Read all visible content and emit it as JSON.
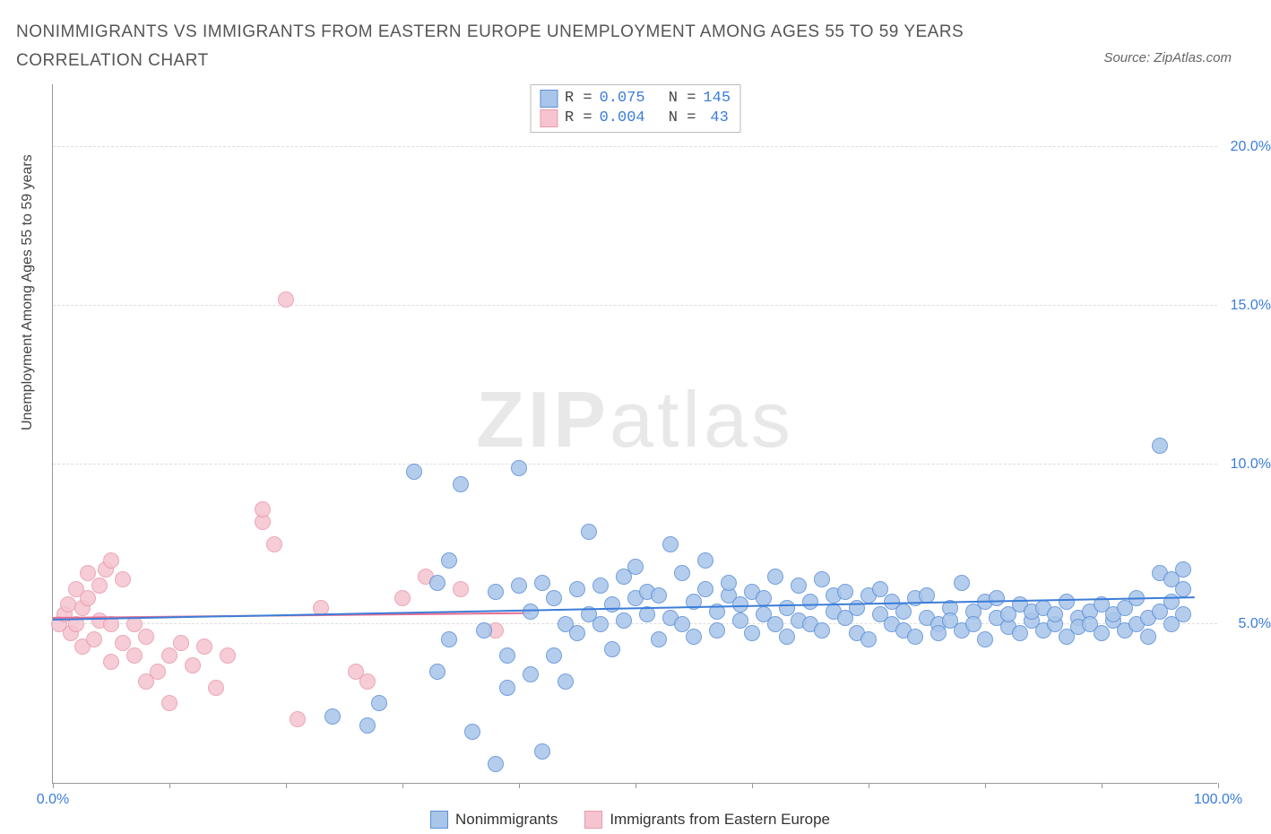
{
  "title": "NONIMMIGRANTS VS IMMIGRANTS FROM EASTERN EUROPE UNEMPLOYMENT AMONG AGES 55 TO 59 YEARS CORRELATION CHART",
  "source": "Source: ZipAtlas.com",
  "watermark_bold": "ZIP",
  "watermark_light": "atlas",
  "y_axis_label": "Unemployment Among Ages 55 to 59 years",
  "chart": {
    "type": "scatter",
    "background_color": "#ffffff",
    "grid_color": "#dddddd",
    "axis_color": "#999999",
    "xlim": [
      0,
      100
    ],
    "ylim": [
      0,
      22
    ],
    "x_tick_positions": [
      0,
      10,
      20,
      30,
      40,
      50,
      60,
      70,
      80,
      90,
      100
    ],
    "x_tick_labels_shown": {
      "0": "0.0%",
      "100": "100.0%"
    },
    "y_grid_positions": [
      5,
      10,
      15,
      20
    ],
    "y_tick_labels": {
      "5": "5.0%",
      "10": "10.0%",
      "15": "15.0%",
      "20": "20.0%"
    },
    "label_color": "#3b7dd8",
    "label_fontsize": 16,
    "marker_radius": 9,
    "marker_stroke_width": 1.2,
    "marker_fill_opacity": 0.32
  },
  "series": {
    "blue": {
      "label": "Nonimmigrants",
      "stroke": "#5b8fd6",
      "fill": "#a9c5ea",
      "R": "0.075",
      "N": "145",
      "trend": {
        "x1": 0,
        "y1": 5.1,
        "x2": 98,
        "y2": 5.8,
        "color": "#3b7dd8",
        "width": 2
      },
      "points": [
        [
          24,
          2.1
        ],
        [
          27,
          1.8
        ],
        [
          28,
          2.5
        ],
        [
          31,
          9.8
        ],
        [
          33,
          6.3
        ],
        [
          33,
          3.5
        ],
        [
          34,
          7.0
        ],
        [
          34,
          4.5
        ],
        [
          35,
          9.4
        ],
        [
          36,
          1.6
        ],
        [
          37,
          4.8
        ],
        [
          38,
          6.0
        ],
        [
          38,
          0.6
        ],
        [
          39,
          3.0
        ],
        [
          39,
          4.0
        ],
        [
          40,
          6.2
        ],
        [
          40,
          9.9
        ],
        [
          41,
          5.4
        ],
        [
          41,
          3.4
        ],
        [
          42,
          1.0
        ],
        [
          42,
          6.3
        ],
        [
          43,
          4.0
        ],
        [
          43,
          5.8
        ],
        [
          44,
          5.0
        ],
        [
          44,
          3.2
        ],
        [
          45,
          6.1
        ],
        [
          45,
          4.7
        ],
        [
          46,
          7.9
        ],
        [
          46,
          5.3
        ],
        [
          47,
          6.2
        ],
        [
          47,
          5.0
        ],
        [
          48,
          5.6
        ],
        [
          48,
          4.2
        ],
        [
          49,
          6.5
        ],
        [
          49,
          5.1
        ],
        [
          50,
          5.8
        ],
        [
          50,
          6.8
        ],
        [
          51,
          5.3
        ],
        [
          51,
          6.0
        ],
        [
          52,
          4.5
        ],
        [
          52,
          5.9
        ],
        [
          53,
          7.5
        ],
        [
          53,
          5.2
        ],
        [
          54,
          6.6
        ],
        [
          54,
          5.0
        ],
        [
          55,
          5.7
        ],
        [
          55,
          4.6
        ],
        [
          56,
          6.1
        ],
        [
          56,
          7.0
        ],
        [
          57,
          5.4
        ],
        [
          57,
          4.8
        ],
        [
          58,
          5.9
        ],
        [
          58,
          6.3
        ],
        [
          59,
          5.1
        ],
        [
          59,
          5.6
        ],
        [
          60,
          4.7
        ],
        [
          60,
          6.0
        ],
        [
          61,
          5.3
        ],
        [
          61,
          5.8
        ],
        [
          62,
          6.5
        ],
        [
          62,
          5.0
        ],
        [
          63,
          5.5
        ],
        [
          63,
          4.6
        ],
        [
          64,
          6.2
        ],
        [
          64,
          5.1
        ],
        [
          65,
          5.7
        ],
        [
          65,
          5.0
        ],
        [
          66,
          6.4
        ],
        [
          66,
          4.8
        ],
        [
          67,
          5.4
        ],
        [
          67,
          5.9
        ],
        [
          68,
          5.2
        ],
        [
          68,
          6.0
        ],
        [
          69,
          4.7
        ],
        [
          69,
          5.5
        ],
        [
          70,
          5.9
        ],
        [
          70,
          4.5
        ],
        [
          71,
          5.3
        ],
        [
          71,
          6.1
        ],
        [
          72,
          5.0
        ],
        [
          72,
          5.7
        ],
        [
          73,
          4.8
        ],
        [
          73,
          5.4
        ],
        [
          74,
          5.8
        ],
        [
          74,
          4.6
        ],
        [
          75,
          5.2
        ],
        [
          75,
          5.9
        ],
        [
          76,
          5.0
        ],
        [
          76,
          4.7
        ],
        [
          77,
          5.5
        ],
        [
          77,
          5.1
        ],
        [
          78,
          6.3
        ],
        [
          78,
          4.8
        ],
        [
          79,
          5.4
        ],
        [
          79,
          5.0
        ],
        [
          80,
          5.7
        ],
        [
          80,
          4.5
        ],
        [
          81,
          5.2
        ],
        [
          81,
          5.8
        ],
        [
          82,
          4.9
        ],
        [
          82,
          5.3
        ],
        [
          83,
          5.6
        ],
        [
          83,
          4.7
        ],
        [
          84,
          5.1
        ],
        [
          84,
          5.4
        ],
        [
          85,
          4.8
        ],
        [
          85,
          5.5
        ],
        [
          86,
          5.0
        ],
        [
          86,
          5.3
        ],
        [
          87,
          4.6
        ],
        [
          87,
          5.7
        ],
        [
          88,
          5.2
        ],
        [
          88,
          4.9
        ],
        [
          89,
          5.4
        ],
        [
          89,
          5.0
        ],
        [
          90,
          5.6
        ],
        [
          90,
          4.7
        ],
        [
          91,
          5.1
        ],
        [
          91,
          5.3
        ],
        [
          92,
          4.8
        ],
        [
          92,
          5.5
        ],
        [
          93,
          5.0
        ],
        [
          93,
          5.8
        ],
        [
          94,
          4.6
        ],
        [
          94,
          5.2
        ],
        [
          95,
          5.4
        ],
        [
          95,
          6.6
        ],
        [
          96,
          5.0
        ],
        [
          96,
          6.4
        ],
        [
          96,
          5.7
        ],
        [
          97,
          6.1
        ],
        [
          97,
          5.3
        ],
        [
          97,
          6.7
        ],
        [
          95,
          10.6
        ]
      ]
    },
    "pink": {
      "label": "Immigrants from Eastern Europe",
      "stroke": "#e89aad",
      "fill": "#f5c4d0",
      "R": "0.004",
      "N": "43",
      "trend": {
        "x1": 0,
        "y1": 5.15,
        "x2": 41,
        "y2": 5.3,
        "color": "#e86f92",
        "width": 2
      },
      "points": [
        [
          0.5,
          5.0
        ],
        [
          1,
          5.3
        ],
        [
          1.3,
          5.6
        ],
        [
          1.5,
          4.7
        ],
        [
          2,
          6.1
        ],
        [
          2,
          5.0
        ],
        [
          2.5,
          5.5
        ],
        [
          2.5,
          4.3
        ],
        [
          3,
          6.6
        ],
        [
          3,
          5.8
        ],
        [
          3.5,
          4.5
        ],
        [
          4,
          6.2
        ],
        [
          4,
          5.1
        ],
        [
          4.5,
          6.7
        ],
        [
          5,
          5.0
        ],
        [
          5,
          7.0
        ],
        [
          5,
          3.8
        ],
        [
          6,
          6.4
        ],
        [
          6,
          4.4
        ],
        [
          7,
          4.0
        ],
        [
          7,
          5.0
        ],
        [
          8,
          3.2
        ],
        [
          8,
          4.6
        ],
        [
          9,
          3.5
        ],
        [
          10,
          2.5
        ],
        [
          10,
          4.0
        ],
        [
          11,
          4.4
        ],
        [
          12,
          3.7
        ],
        [
          13,
          4.3
        ],
        [
          14,
          3.0
        ],
        [
          15,
          4.0
        ],
        [
          18,
          8.2
        ],
        [
          18,
          8.6
        ],
        [
          19,
          7.5
        ],
        [
          20,
          15.2
        ],
        [
          21,
          2.0
        ],
        [
          23,
          5.5
        ],
        [
          26,
          3.5
        ],
        [
          27,
          3.2
        ],
        [
          30,
          5.8
        ],
        [
          32,
          6.5
        ],
        [
          35,
          6.1
        ],
        [
          38,
          4.8
        ]
      ]
    }
  },
  "stat_box": {
    "r_label": "R =",
    "n_label": "N ="
  }
}
